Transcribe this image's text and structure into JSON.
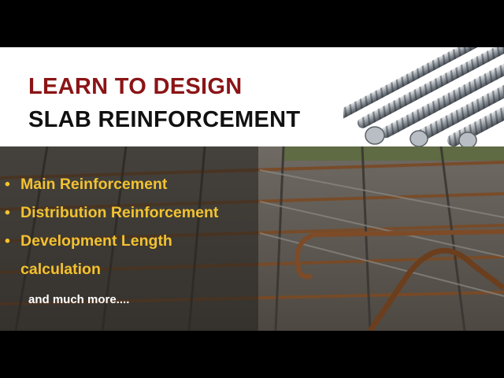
{
  "header": {
    "title_line1": "LEARN TO DESIGN",
    "title_line2": "SLAB REINFORCEMENT",
    "title_line1_color": "#8b1416",
    "title_line2_color": "#111111",
    "illustration": "steel-rebar-bars"
  },
  "photo": {
    "subject": "rebar-mesh-photo",
    "bullets": [
      {
        "text": "Main Reinforcement"
      },
      {
        "text": "Distribution Reinforcement"
      },
      {
        "text": "Development Length",
        "continuation": "calculation"
      }
    ],
    "bullet_symbol": "•",
    "bullet_color": "#f2c230",
    "more_text": "and much more...."
  }
}
